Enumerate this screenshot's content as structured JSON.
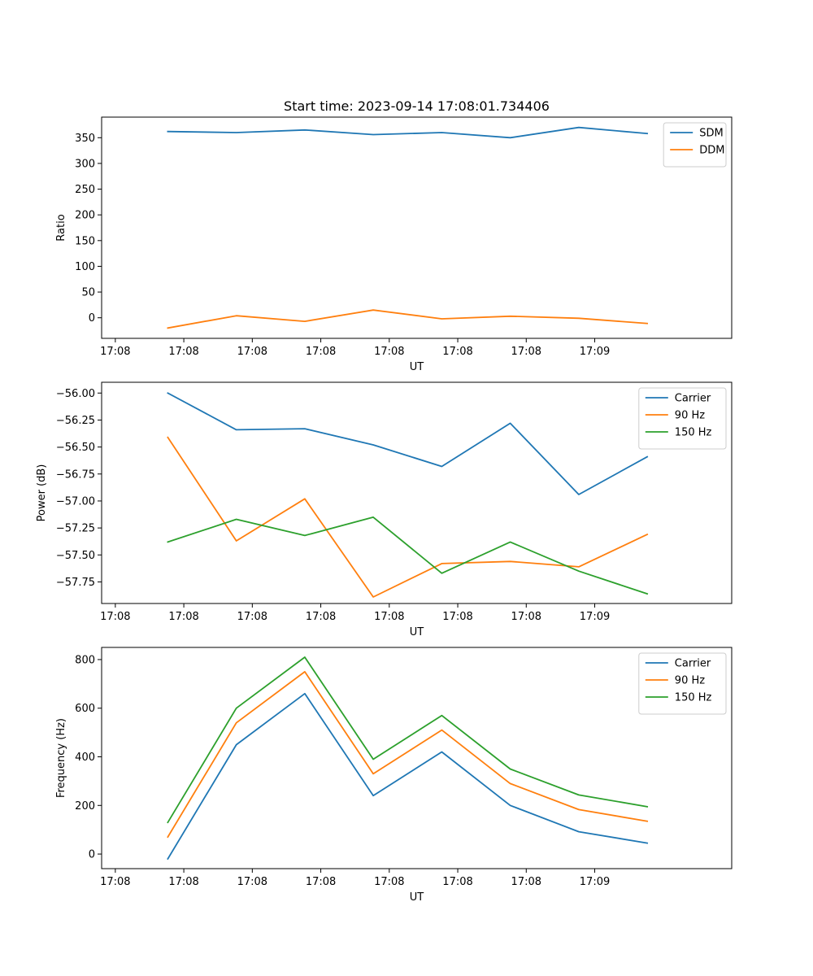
{
  "figure_title": "Start time: 2023-09-14 17:08:01.734406",
  "colors": {
    "blue": "#1f77b4",
    "orange": "#ff7f0e",
    "green": "#2ca02c"
  },
  "chart_data": [
    {
      "type": "line",
      "title": "Start time: 2023-09-14 17:08:01.734406",
      "xlabel": "UT",
      "ylabel": "Ratio",
      "xticks": [
        {
          "value": -0.75,
          "label": "17:08"
        },
        {
          "value": 0.75,
          "label": "17:08"
        },
        {
          "value": 2.25,
          "label": "17:08"
        },
        {
          "value": 3.75,
          "label": "17:08"
        },
        {
          "value": 5.25,
          "label": "17:08"
        },
        {
          "value": 6.75,
          "label": "17:08"
        },
        {
          "value": 8.25,
          "label": "17:08"
        },
        {
          "value": 9.75,
          "label": "17:09"
        }
      ],
      "xlim": [
        -1.05,
        12.75
      ],
      "ylim": [
        -40,
        390
      ],
      "yticks": [
        {
          "value": 0,
          "label": "0"
        },
        {
          "value": 50,
          "label": "50"
        },
        {
          "value": 100,
          "label": "100"
        },
        {
          "value": 150,
          "label": "150"
        },
        {
          "value": 200,
          "label": "200"
        },
        {
          "value": 250,
          "label": "250"
        },
        {
          "value": 300,
          "label": "300"
        },
        {
          "value": 350,
          "label": "350"
        }
      ],
      "legend_position": "top-right",
      "series": [
        {
          "name": "SDM",
          "color": "#1f77b4",
          "x": [
            0.4,
            1.9,
            3.4,
            4.9,
            6.4,
            7.9,
            9.4,
            10.9
          ],
          "y": [
            362,
            360,
            365,
            356,
            360,
            350,
            370,
            358
          ]
        },
        {
          "name": "DDM",
          "color": "#ff7f0e",
          "x": [
            0.4,
            1.9,
            3.4,
            4.9,
            6.4,
            7.9,
            9.4,
            10.9
          ],
          "y": [
            -20,
            4,
            -7,
            15,
            -2,
            3,
            -1,
            -11
          ]
        }
      ]
    },
    {
      "type": "line",
      "title": "",
      "xlabel": "UT",
      "ylabel": "Power (dB)",
      "xticks": [
        {
          "value": -0.75,
          "label": "17:08"
        },
        {
          "value": 0.75,
          "label": "17:08"
        },
        {
          "value": 2.25,
          "label": "17:08"
        },
        {
          "value": 3.75,
          "label": "17:08"
        },
        {
          "value": 5.25,
          "label": "17:08"
        },
        {
          "value": 6.75,
          "label": "17:08"
        },
        {
          "value": 8.25,
          "label": "17:08"
        },
        {
          "value": 9.75,
          "label": "17:09"
        }
      ],
      "xlim": [
        -1.05,
        12.75
      ],
      "ylim": [
        -57.95,
        -55.9
      ],
      "yticks": [
        {
          "value": -56.0,
          "label": "−56.00"
        },
        {
          "value": -56.25,
          "label": "−56.25"
        },
        {
          "value": -56.5,
          "label": "−56.50"
        },
        {
          "value": -56.75,
          "label": "−56.75"
        },
        {
          "value": -57.0,
          "label": "−57.00"
        },
        {
          "value": -57.25,
          "label": "−57.25"
        },
        {
          "value": -57.5,
          "label": "−57.50"
        },
        {
          "value": -57.75,
          "label": "−57.75"
        }
      ],
      "legend_position": "top-right",
      "series": [
        {
          "name": "Carrier",
          "color": "#1f77b4",
          "x": [
            0.4,
            1.9,
            3.4,
            4.9,
            6.4,
            7.9,
            9.4,
            10.9
          ],
          "y": [
            -56.0,
            -56.34,
            -56.33,
            -56.48,
            -56.68,
            -56.28,
            -56.94,
            -56.59
          ]
        },
        {
          "name": "90 Hz",
          "color": "#ff7f0e",
          "x": [
            0.4,
            1.9,
            3.4,
            4.9,
            6.4,
            7.9,
            9.4,
            10.9
          ],
          "y": [
            -56.41,
            -57.37,
            -56.98,
            -57.89,
            -57.58,
            -57.56,
            -57.61,
            -57.31
          ]
        },
        {
          "name": "150 Hz",
          "color": "#2ca02c",
          "x": [
            0.4,
            1.9,
            3.4,
            4.9,
            6.4,
            7.9,
            9.4,
            10.9
          ],
          "y": [
            -57.38,
            -57.17,
            -57.32,
            -57.15,
            -57.67,
            -57.38,
            -57.65,
            -57.86
          ]
        }
      ]
    },
    {
      "type": "line",
      "title": "",
      "xlabel": "UT",
      "ylabel": "Frequency (Hz)",
      "xticks": [
        {
          "value": -0.75,
          "label": "17:08"
        },
        {
          "value": 0.75,
          "label": "17:08"
        },
        {
          "value": 2.25,
          "label": "17:08"
        },
        {
          "value": 3.75,
          "label": "17:08"
        },
        {
          "value": 5.25,
          "label": "17:08"
        },
        {
          "value": 6.75,
          "label": "17:08"
        },
        {
          "value": 8.25,
          "label": "17:08"
        },
        {
          "value": 9.75,
          "label": "17:09"
        }
      ],
      "xlim": [
        -1.05,
        12.75
      ],
      "ylim": [
        -60,
        850
      ],
      "yticks": [
        {
          "value": 0,
          "label": "0"
        },
        {
          "value": 200,
          "label": "200"
        },
        {
          "value": 400,
          "label": "400"
        },
        {
          "value": 600,
          "label": "600"
        },
        {
          "value": 800,
          "label": "800"
        }
      ],
      "legend_position": "top-right",
      "series": [
        {
          "name": "Carrier",
          "color": "#1f77b4",
          "x": [
            0.4,
            1.9,
            3.4,
            4.9,
            6.4,
            7.9,
            9.4,
            10.9
          ],
          "y": [
            -20,
            450,
            660,
            240,
            420,
            200,
            92,
            45
          ]
        },
        {
          "name": "90 Hz",
          "color": "#ff7f0e",
          "x": [
            0.4,
            1.9,
            3.4,
            4.9,
            6.4,
            7.9,
            9.4,
            10.9
          ],
          "y": [
            70,
            540,
            750,
            330,
            510,
            290,
            183,
            135
          ]
        },
        {
          "name": "150 Hz",
          "color": "#2ca02c",
          "x": [
            0.4,
            1.9,
            3.4,
            4.9,
            6.4,
            7.9,
            9.4,
            10.9
          ],
          "y": [
            130,
            600,
            810,
            390,
            570,
            350,
            243,
            195
          ]
        }
      ]
    }
  ]
}
